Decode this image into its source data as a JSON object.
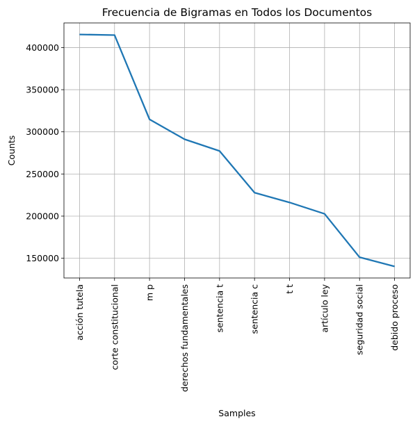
{
  "chart_data": {
    "type": "line",
    "title": "Frecuencia de Bigramas en Todos los Documentos",
    "xlabel": "Samples",
    "ylabel": "Counts",
    "categories": [
      "acción tutela",
      "corte constitucional",
      "m p",
      "derechos fundamentales",
      "sentencia t",
      "sentencia c",
      "t t",
      "artículo ley",
      "seguridad social",
      "debido proceso"
    ],
    "series": [
      {
        "values": [
          415500,
          414800,
          314800,
          291200,
          277300,
          227800,
          216200,
          202700,
          151200,
          140300
        ]
      }
    ],
    "ylim": [
      126600,
      429200
    ],
    "yticks": [
      150000,
      200000,
      250000,
      300000,
      350000,
      400000
    ],
    "ytick_labels": [
      "150000",
      "200000",
      "250000",
      "300000",
      "350000",
      "400000"
    ],
    "grid": true,
    "line_color": "#1f77b4",
    "grid_color": "#b0b0b0"
  }
}
